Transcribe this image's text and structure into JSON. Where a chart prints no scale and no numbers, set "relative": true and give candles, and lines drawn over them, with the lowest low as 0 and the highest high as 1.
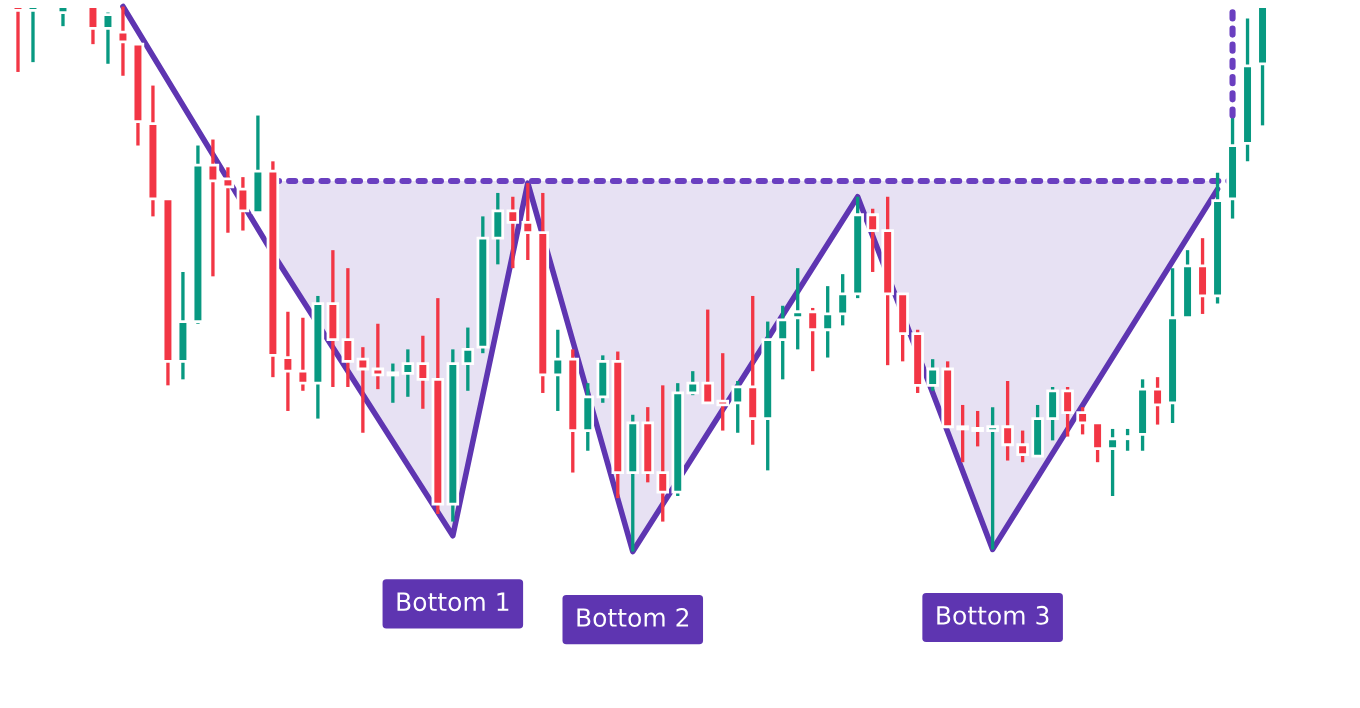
{
  "chart_data": {
    "type": "candlestick",
    "relative": true,
    "categories": [
      null,
      null,
      null,
      null,
      null,
      null,
      null,
      null,
      null,
      null,
      null,
      null,
      null,
      null,
      null,
      null,
      null,
      null,
      null,
      null,
      null,
      null,
      null,
      null,
      null,
      null,
      null,
      null,
      null,
      null,
      null,
      null,
      null,
      null,
      null,
      null,
      null,
      null,
      null,
      null,
      null,
      null,
      null,
      null,
      null,
      null,
      null,
      null,
      null,
      null,
      null,
      null,
      null,
      null,
      null,
      null,
      null,
      null,
      null,
      null,
      null,
      null,
      null,
      null,
      null,
      null,
      null,
      null,
      null,
      null,
      null,
      null,
      null,
      null,
      null,
      null,
      null,
      null,
      null,
      null,
      null,
      null,
      null,
      null
    ],
    "ohlc": [
      [
        1,
        1,
        0.88,
        0.993
      ],
      [
        0.993,
        1,
        0.898,
        1
      ],
      null,
      [
        0.989,
        1,
        0.964,
        1
      ],
      null,
      [
        1,
        1,
        0.931,
        0.96
      ],
      [
        0.96,
        0.989,
        0.895,
        0.985
      ],
      [
        0.953,
        1,
        0.873,
        0.935
      ],
      [
        0.931,
        0.931,
        0.745,
        0.789
      ],
      [
        0.785,
        0.855,
        0.615,
        0.647
      ],
      [
        0.647,
        0.647,
        0.305,
        0.349
      ],
      [
        0.349,
        0.513,
        0.316,
        0.422
      ],
      [
        0.422,
        0.745,
        0.418,
        0.709
      ],
      [
        0.709,
        0.756,
        0.505,
        0.68
      ],
      [
        0.684,
        0.705,
        0.585,
        0.669
      ],
      [
        0.665,
        0.687,
        0.589,
        0.625
      ],
      [
        0.622,
        0.8,
        0.622,
        0.698
      ],
      [
        0.698,
        0.716,
        0.32,
        0.36
      ],
      [
        0.356,
        0.44,
        0.258,
        0.331
      ],
      [
        0.331,
        0.429,
        0.295,
        0.309
      ],
      [
        0.309,
        0.469,
        0.244,
        0.455
      ],
      [
        0.455,
        0.553,
        0.302,
        0.389
      ],
      [
        0.389,
        0.52,
        0.302,
        0.349
      ],
      [
        0.353,
        0.375,
        0.218,
        0.335
      ],
      [
        0.335,
        0.418,
        0.298,
        0.324
      ],
      [
        0.324,
        0.345,
        0.273,
        0.327
      ],
      [
        0.327,
        0.371,
        0.284,
        0.345
      ],
      [
        0.345,
        0.396,
        0.262,
        0.316
      ],
      [
        0.316,
        0.465,
        0.069,
        0.087
      ],
      [
        0.087,
        0.371,
        0.055,
        0.345
      ],
      [
        0.345,
        0.411,
        0.295,
        0.371
      ],
      [
        0.375,
        0.615,
        0.364,
        0.575
      ],
      [
        0.575,
        0.658,
        0.527,
        0.625
      ],
      [
        0.625,
        0.651,
        0.52,
        0.604
      ],
      [
        0.604,
        0.676,
        0.535,
        0.585
      ],
      [
        0.585,
        0.658,
        0.291,
        0.324
      ],
      [
        0.324,
        0.407,
        0.258,
        0.353
      ],
      [
        0.353,
        0.371,
        0.145,
        0.222
      ],
      [
        0.222,
        0.309,
        0.185,
        0.284
      ],
      [
        0.284,
        0.36,
        0.273,
        0.349
      ],
      [
        0.349,
        0.367,
        0.098,
        0.145
      ],
      [
        0.145,
        0.251,
        0,
        0.236
      ],
      [
        0.236,
        0.265,
        0.127,
        0.145
      ],
      [
        0.145,
        0.305,
        0.055,
        0.109
      ],
      [
        0.109,
        0.309,
        0.102,
        0.291
      ],
      [
        0.291,
        0.331,
        0.287,
        0.309
      ],
      [
        0.309,
        0.444,
        0.273,
        0.273
      ],
      [
        0.276,
        0.364,
        0.222,
        0.269
      ],
      [
        0.273,
        0.313,
        0.218,
        0.302
      ],
      [
        0.302,
        0.469,
        0.196,
        0.244
      ],
      [
        0.244,
        0.422,
        0.149,
        0.389
      ],
      [
        0.389,
        0.451,
        0.316,
        0.425
      ],
      [
        0.429,
        0.52,
        0.371,
        0.44
      ],
      [
        0.44,
        0.447,
        0.331,
        0.407
      ],
      [
        0.407,
        0.487,
        0.356,
        0.436
      ],
      [
        0.436,
        0.509,
        0.415,
        0.473
      ],
      [
        0.473,
        0.651,
        0.465,
        0.618
      ],
      [
        0.618,
        0.629,
        0.513,
        0.589
      ],
      [
        0.589,
        0.651,
        0.342,
        0.473
      ],
      [
        0.473,
        0.473,
        0.349,
        0.4
      ],
      [
        0.4,
        0.407,
        0.291,
        0.305
      ],
      [
        0.305,
        0.353,
        0.295,
        0.335
      ],
      [
        0.335,
        0.349,
        0.229,
        0.229
      ],
      [
        0.229,
        0.269,
        0.164,
        0.225
      ],
      [
        0.225,
        0.258,
        0.193,
        0.222
      ],
      [
        0.222,
        0.265,
        0.004,
        0.229
      ],
      [
        0.229,
        0.313,
        0.167,
        0.196
      ],
      [
        0.196,
        0.222,
        0.164,
        0.178
      ],
      [
        0.175,
        0.269,
        0.175,
        0.244
      ],
      [
        0.244,
        0.302,
        0.204,
        0.295
      ],
      [
        0.295,
        0.302,
        0.211,
        0.255
      ],
      [
        0.255,
        0.265,
        0.215,
        0.236
      ],
      [
        0.236,
        0.236,
        0.164,
        0.189
      ],
      [
        0.189,
        0.225,
        0.102,
        0.207
      ],
      [
        0.207,
        0.225,
        0.185,
        0.211
      ],
      [
        0.215,
        0.316,
        0.185,
        0.298
      ],
      [
        0.298,
        0.32,
        0.233,
        0.269
      ],
      [
        0.273,
        0.52,
        0.236,
        0.429
      ],
      [
        0.429,
        0.553,
        0.429,
        0.524
      ],
      [
        0.524,
        0.575,
        0.436,
        0.469
      ],
      [
        0.469,
        0.695,
        0.455,
        0.644
      ],
      [
        0.647,
        0.8,
        0.611,
        0.745
      ],
      [
        0.749,
        0.978,
        0.716,
        0.891
      ],
      [
        0.895,
        1,
        0.782,
        1
      ]
    ],
    "colors": [
      "#f23645",
      "#089981",
      null,
      "#089981",
      null,
      "#f23645",
      "#089981",
      "#f23645",
      "#f23645",
      "#f23645",
      "#f23645",
      "#089981",
      "#089981",
      "#f23645",
      "#f23645",
      "#f23645",
      "#089981",
      "#f23645",
      "#f23645",
      "#f23645",
      "#089981",
      "#f23645",
      "#f23645",
      "#f23645",
      "#f23645",
      "#089981",
      "#089981",
      "#f23645",
      "#f23645",
      "#089981",
      "#089981",
      "#089981",
      "#089981",
      "#f23645",
      "#f23645",
      "#f23645",
      "#089981",
      "#f23645",
      "#089981",
      "#089981",
      "#f23645",
      "#089981",
      "#f23645",
      "#f23645",
      "#089981",
      "#089981",
      "#f23645",
      "#f23645",
      "#089981",
      "#f23645",
      "#089981",
      "#089981",
      "#089981",
      "#f23645",
      "#089981",
      "#089981",
      "#089981",
      "#f23645",
      "#f23645",
      "#f23645",
      "#f23645",
      "#089981",
      "#f23645",
      "#f23645",
      "#f23645",
      "#089981",
      "#f23645",
      "#f23645",
      "#089981",
      "#089981",
      "#f23645",
      "#f23645",
      "#f23645",
      "#089981",
      "#089981",
      "#089981",
      "#f23645",
      "#089981",
      "#089981",
      "#f23645",
      "#089981",
      "#089981",
      "#089981",
      "#089981"
    ],
    "series": [
      {
        "type": "line",
        "color": "#5e35b1",
        "line_style": "solid",
        "values": [
          null,
          null,
          null,
          null,
          null,
          null,
          null,
          1,
          null,
          null,
          null,
          null,
          null,
          null,
          null,
          null,
          null,
          0.547,
          null,
          null,
          null,
          null,
          null,
          null,
          null,
          null,
          null,
          null,
          null,
          0.029,
          null,
          null,
          null,
          null,
          0.676,
          null,
          null,
          null,
          null,
          null,
          null,
          0,
          null,
          null,
          null,
          null,
          null,
          null,
          null,
          null,
          null,
          null,
          null,
          null,
          null,
          null,
          0.651,
          null,
          null,
          null,
          null,
          null,
          null,
          null,
          null,
          0.004,
          null,
          null,
          null,
          null,
          null,
          null,
          null,
          null,
          null,
          null,
          null,
          null,
          null,
          null,
          0.665,
          null,
          null,
          null
        ],
        "lower": [
          null,
          null,
          null,
          null,
          null,
          null,
          null,
          null,
          null,
          null,
          null,
          null,
          null,
          null,
          null,
          null,
          null,
          0.547,
          null,
          null,
          null,
          null,
          null,
          null,
          null,
          null,
          null,
          null,
          null,
          0.029,
          null,
          null,
          null,
          null,
          0.676,
          null,
          null,
          null,
          null,
          null,
          null,
          0,
          null,
          null,
          null,
          null,
          null,
          null,
          null,
          null,
          null,
          null,
          null,
          null,
          null,
          null,
          0.651,
          null,
          null,
          null,
          null,
          null,
          null,
          null,
          null,
          0.004,
          null,
          null,
          null,
          null,
          null,
          null,
          null,
          null,
          null,
          null,
          null,
          null,
          null,
          null,
          0.665,
          null,
          null,
          null
        ],
        "upper": [
          null,
          null,
          null,
          null,
          null,
          null,
          null,
          null,
          null,
          null,
          null,
          null,
          null,
          null,
          null,
          null,
          null,
          0.68,
          null,
          null,
          null,
          null,
          null,
          null,
          null,
          null,
          null,
          null,
          null,
          0.68,
          null,
          null,
          null,
          null,
          0.68,
          null,
          null,
          null,
          null,
          null,
          null,
          0.68,
          null,
          null,
          null,
          null,
          null,
          null,
          null,
          null,
          null,
          null,
          null,
          null,
          null,
          null,
          0.68,
          null,
          null,
          null,
          null,
          null,
          null,
          null,
          null,
          0.68,
          null,
          null,
          null,
          null,
          null,
          null,
          null,
          null,
          null,
          null,
          null,
          null,
          null,
          null,
          0.68,
          null,
          null,
          null
        ]
      },
      {
        "type": "line",
        "color": "#6a3fc0",
        "line_style": "dotted",
        "values": [
          null,
          null,
          null,
          null,
          null,
          null,
          null,
          null,
          null,
          null,
          null,
          null,
          null,
          null,
          null,
          null,
          null,
          0.68,
          null,
          null,
          null,
          null,
          null,
          null,
          null,
          null,
          null,
          null,
          null,
          null,
          null,
          null,
          null,
          null,
          null,
          null,
          null,
          null,
          null,
          null,
          null,
          null,
          null,
          null,
          null,
          null,
          null,
          null,
          null,
          null,
          null,
          null,
          null,
          null,
          null,
          null,
          null,
          null,
          null,
          null,
          null,
          null,
          null,
          null,
          null,
          null,
          null,
          null,
          null,
          null,
          null,
          null,
          null,
          null,
          null,
          null,
          null,
          null,
          null,
          null,
          null,
          0.68,
          null,
          null
        ],
        "errors": [
          null,
          null,
          null,
          null,
          null,
          null,
          null,
          null,
          null,
          null,
          null,
          null,
          null,
          null,
          null,
          null,
          null,
          null,
          null,
          null,
          null,
          null,
          null,
          null,
          null,
          null,
          null,
          null,
          null,
          null,
          null,
          null,
          null,
          null,
          null,
          null,
          null,
          null,
          null,
          null,
          null,
          null,
          null,
          null,
          null,
          null,
          null,
          null,
          null,
          null,
          null,
          null,
          null,
          null,
          null,
          null,
          null,
          null,
          null,
          null,
          null,
          null,
          null,
          null,
          null,
          null,
          null,
          null,
          null,
          null,
          null,
          null,
          null,
          null,
          null,
          null,
          null,
          null,
          null,
          null,
          null,
          [
            0.8,
            1
          ],
          null,
          null
        ]
      }
    ],
    "annotations": [
      "Bottom 1",
      "Bottom 2",
      "Bottom 3"
    ]
  }
}
